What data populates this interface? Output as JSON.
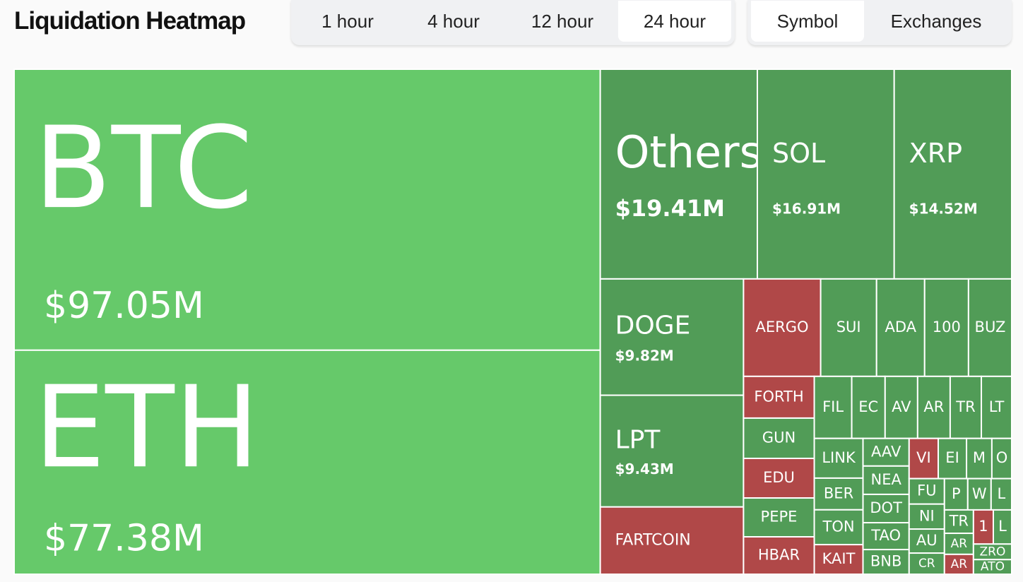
{
  "header": {
    "title": "Liquidation Heatmap",
    "time_tabs": [
      "1 hour",
      "4 hour",
      "12 hour",
      "24 hour"
    ],
    "view_tabs": [
      "Symbol",
      "Exchanges"
    ]
  },
  "chart_data": {
    "type": "treemap",
    "categories": [
      "BTC",
      "ETH",
      "Others",
      "SOL",
      "XRP",
      "DOGE",
      "LPT",
      "FARTCOIN",
      "AERGO",
      "SUI",
      "ADA",
      "100",
      "BUZ",
      "FORTH",
      "GUN",
      "EDU",
      "PEPE",
      "HBAR",
      "FIL",
      "EC",
      "AV",
      "AR",
      "TR",
      "LT",
      "LINK",
      "BER",
      "TON",
      "KAIT",
      "AAV",
      "NEA",
      "DOT",
      "TAO",
      "BNB",
      "VI",
      "EI",
      "M",
      "O",
      "FU",
      "NI",
      "AU",
      "CR",
      "P",
      "W",
      "L",
      "TR",
      "AR",
      "AR",
      "1",
      "L",
      "ZRO",
      "ATO"
    ],
    "values": [
      97.05,
      77.38,
      19.41,
      16.91,
      14.52,
      9.82,
      9.43,
      5.68,
      4.43,
      3.21,
      2.76,
      2.52,
      2.48,
      1.74,
      1.68,
      1.65,
      1.62,
      1.56,
      1.37,
      1.22,
      1.19,
      1.19,
      1.14,
      1.11,
      1.14,
      0.91,
      1.0,
      0.85,
      0.75,
      0.77,
      0.77,
      0.73,
      0.67,
      0.69,
      0.67,
      0.6,
      0.47,
      0.53,
      0.52,
      0.5,
      0.44,
      0.43,
      0.43,
      0.38,
      0.4,
      0.36,
      0.34,
      0.4,
      0.37,
      0.35,
      0.33
    ],
    "value_labels": [
      "$97.05M",
      "$77.38M",
      "$19.41M",
      "$16.91M",
      "$14.52M",
      "$9.82M",
      "$9.43M",
      null,
      null,
      null,
      null,
      null,
      null,
      null,
      null,
      null,
      null,
      null,
      null,
      null,
      null,
      null,
      null,
      null,
      null,
      null,
      null,
      null,
      null,
      null,
      null,
      null,
      null,
      null,
      null,
      null,
      null,
      null,
      null,
      null,
      null,
      null,
      null,
      null,
      null,
      null,
      null,
      null,
      null,
      null,
      null
    ],
    "colors": [
      "#66c96a",
      "#66c96a",
      "#519c57",
      "#519c57",
      "#519c57",
      "#519c57",
      "#519c57",
      "#b04848",
      "#b04848",
      "#519c57",
      "#519c57",
      "#519c57",
      "#519c57",
      "#b04848",
      "#519c57",
      "#b04848",
      "#519c57",
      "#b04848",
      "#519c57",
      "#519c57",
      "#519c57",
      "#519c57",
      "#519c57",
      "#519c57",
      "#519c57",
      "#519c57",
      "#519c57",
      "#b04848",
      "#519c57",
      "#519c57",
      "#519c57",
      "#519c57",
      "#519c57",
      "#b04848",
      "#519c57",
      "#519c57",
      "#519c57",
      "#519c57",
      "#519c57",
      "#519c57",
      "#519c57",
      "#519c57",
      "#519c57",
      "#519c57",
      "#519c57",
      "#519c57",
      "#b04848",
      "#b04848",
      "#519c57",
      "#519c57",
      "#519c57"
    ]
  }
}
